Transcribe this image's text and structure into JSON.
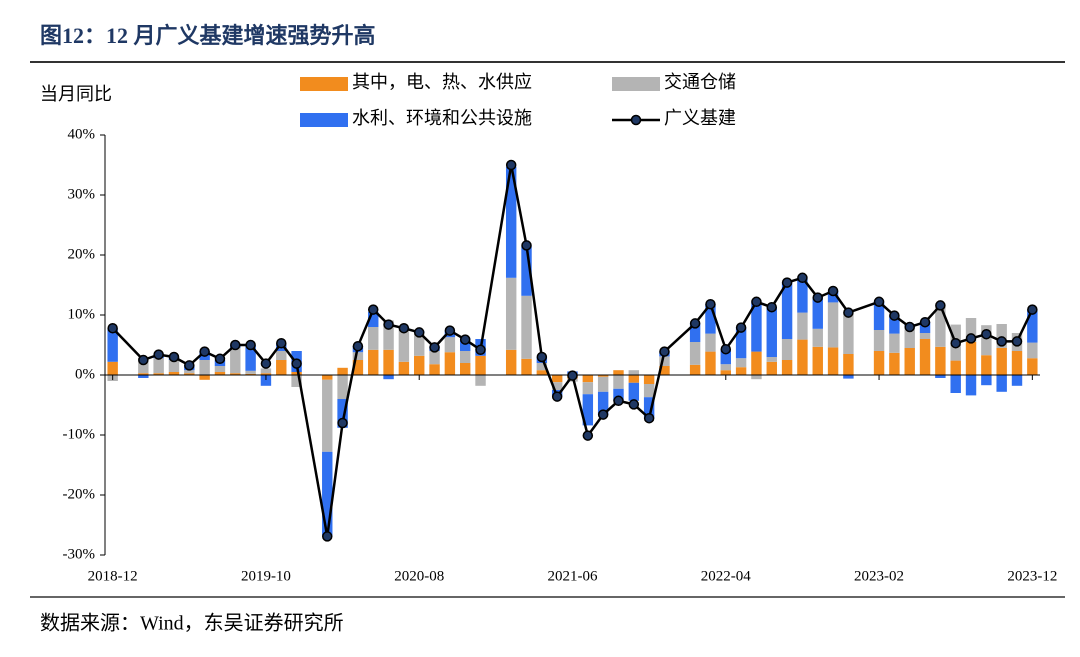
{
  "chart_data": {
    "type": "stacked_bar_line",
    "title": "图12：12 月广义基建增速强势升高",
    "y_label": "当月同比",
    "source": "数据来源：Wind，东吴证券研究所",
    "categories": [
      "2018-12",
      null,
      null,
      null,
      null,
      null,
      null,
      null,
      null,
      null,
      "2019-10",
      null,
      null,
      null,
      null,
      null,
      null,
      null,
      null,
      null,
      "2020-08",
      null,
      null,
      null,
      null,
      null,
      null,
      null,
      null,
      null,
      "2021-06",
      null,
      null,
      null,
      null,
      null,
      null,
      null,
      null,
      null,
      "2022-04",
      null,
      null,
      null,
      null,
      null,
      null,
      null,
      null,
      null,
      "2023-02",
      null,
      null,
      null,
      null,
      null,
      null,
      null,
      null,
      null,
      "2023-12"
    ],
    "span_gaps": true,
    "ylim": [
      -30,
      40
    ],
    "yticks": [
      {
        "value": 40,
        "label": "40%"
      },
      {
        "value": 30,
        "label": "30%"
      },
      {
        "value": 20,
        "label": "20%"
      },
      {
        "value": 10,
        "label": "10%"
      },
      {
        "value": 0,
        "label": "0%"
      },
      {
        "value": -10,
        "label": "-10%"
      },
      {
        "value": -20,
        "label": "-20%"
      },
      {
        "value": -30,
        "label": "-30%"
      }
    ],
    "series": [
      {
        "name": "其中，电、热、水供应",
        "type": "bar",
        "color": "#f28c1e",
        "values": [
          2.2,
          null,
          0.3,
          0.3,
          0.5,
          0.3,
          -0.8,
          0.5,
          0.3,
          0.2,
          0.3,
          2.5,
          0.5,
          null,
          -0.8,
          1.2,
          2.5,
          4.2,
          4.2,
          2.2,
          3.2,
          1.8,
          3.8,
          2.0,
          3.2,
          null,
          4.2,
          2.7,
          0.8,
          -1.2,
          -0.6,
          -1.2,
          -0.3,
          0.8,
          -1.3,
          -1.5,
          1.5,
          null,
          1.7,
          3.9,
          0.8,
          1.3,
          3.9,
          2.2,
          2.5,
          5.9,
          4.7,
          4.6,
          3.5,
          null,
          4.0,
          3.7,
          4.5,
          6.0,
          4.7,
          2.4,
          5.5,
          3.3,
          4.5,
          4.0,
          2.8
        ]
      },
      {
        "name": "交通仓储",
        "type": "bar",
        "color": "#b4b4b4",
        "values": [
          -1.0,
          null,
          2.5,
          2.5,
          2.0,
          0.5,
          2.5,
          1.0,
          4.2,
          0.5,
          0.8,
          1.5,
          -2.0,
          null,
          -12,
          -4,
          1.3,
          3.8,
          4.9,
          5.5,
          3.8,
          2.2,
          2.5,
          2.0,
          -1.8,
          null,
          12,
          10.5,
          1.2,
          -1.3,
          -0.5,
          -2.0,
          -2.5,
          -2.3,
          0.8,
          -2.2,
          1.6,
          null,
          3.8,
          3.0,
          1.0,
          1.5,
          -0.7,
          0.8,
          3.5,
          4.5,
          3.0,
          7.5,
          6.9,
          null,
          3.5,
          3.2,
          3.5,
          1.0,
          6.9,
          6.0,
          4.0,
          5.0,
          4.0,
          3.0,
          2.6
        ]
      },
      {
        "name": "水利、环境和公共设施",
        "type": "bar",
        "color": "#3070f0",
        "values": [
          5.5,
          null,
          -0.5,
          0.8,
          0.5,
          0.8,
          1.5,
          1.0,
          0.5,
          4.3,
          -1.8,
          1.2,
          3.5,
          null,
          -14,
          -4.8,
          1.0,
          2.5,
          -0.7,
          0.3,
          0.3,
          0.8,
          1.0,
          2.2,
          2.8,
          null,
          18.5,
          8.3,
          1.0,
          -1.0,
          0.6,
          -5.2,
          -3.8,
          -2.0,
          -3.0,
          -3.5,
          0.8,
          null,
          3.1,
          4.9,
          2.5,
          5.1,
          8.3,
          8.3,
          9.4,
          5.8,
          5.2,
          1.9,
          -0.6,
          null,
          4.7,
          3.0,
          0.5,
          1.8,
          -0.5,
          -3.0,
          -3.4,
          -1.7,
          -2.8,
          -1.8,
          5.5
        ]
      },
      {
        "name": "广义基建",
        "type": "line",
        "color": "#000000",
        "marker_color": "#1f3864",
        "values": [
          7.8,
          null,
          2.5,
          3.4,
          3.0,
          1.6,
          3.9,
          2.7,
          5.0,
          5.0,
          1.9,
          5.3,
          1.9,
          null,
          -26.9,
          -8.0,
          4.8,
          10.9,
          8.4,
          7.8,
          7.1,
          4.6,
          7.4,
          5.9,
          4.2,
          null,
          35.0,
          21.6,
          3.0,
          -3.6,
          -0.1,
          -10.1,
          -6.6,
          -4.3,
          -4.9,
          -7.2,
          3.9,
          null,
          8.6,
          11.8,
          4.3,
          7.9,
          12.2,
          11.3,
          15.4,
          16.2,
          12.9,
          14.0,
          10.4,
          null,
          12.2,
          9.9,
          8.0,
          8.8,
          11.6,
          5.3,
          6.1,
          6.8,
          5.6,
          5.6,
          10.9
        ]
      }
    ]
  }
}
